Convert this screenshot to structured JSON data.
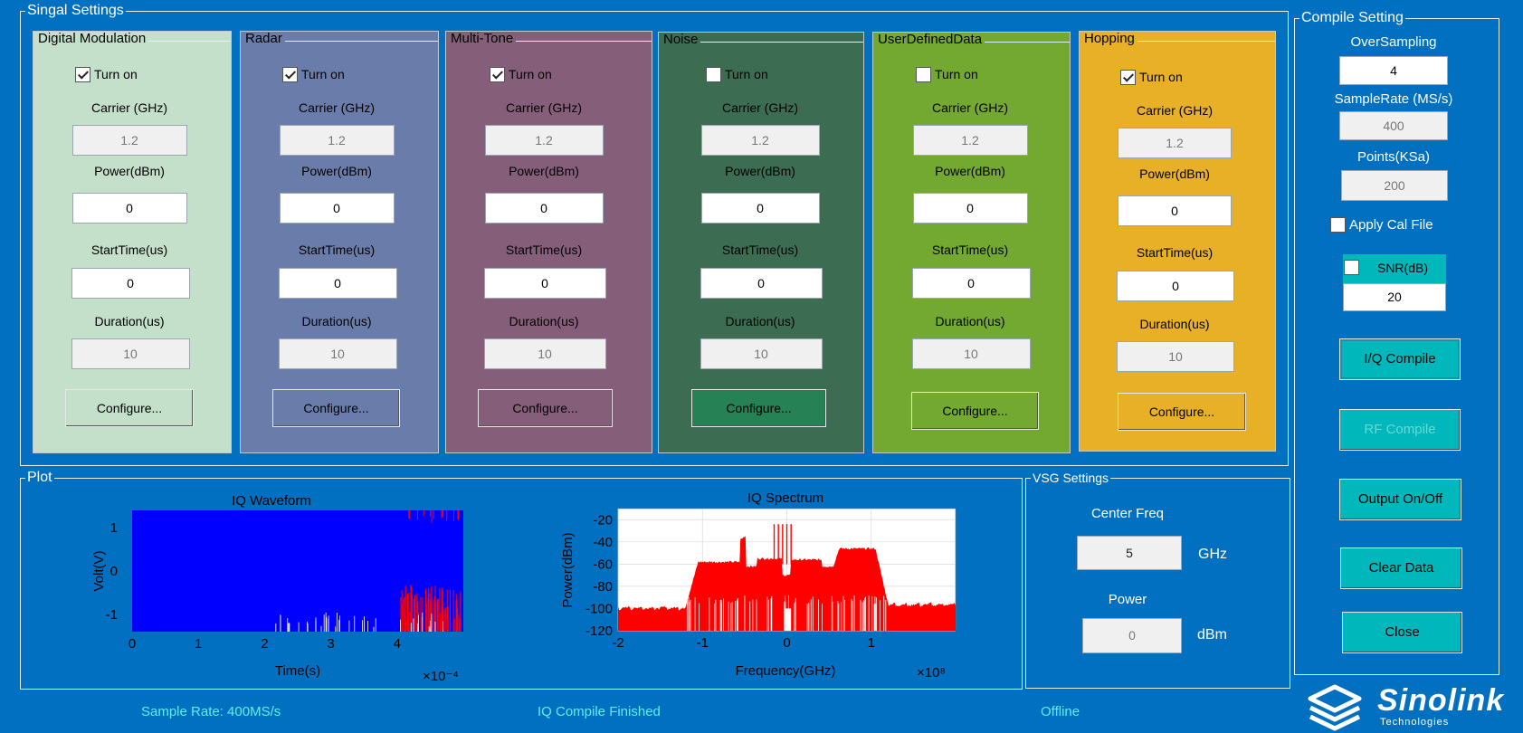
{
  "signal_settings": {
    "title": "Singal Settings",
    "panels": [
      {
        "name": "Digital Modulation",
        "bg": "#c4e0cb",
        "turn_on": true,
        "carrier": "1.2",
        "power": "0",
        "start_time": "0",
        "duration": "10",
        "btn_bg": "#c4e0cb"
      },
      {
        "name": "Radar",
        "bg": "#6a7daa",
        "turn_on": true,
        "carrier": "1.2",
        "power": "0",
        "start_time": "0",
        "duration": "10",
        "btn_bg": "#6a7daa"
      },
      {
        "name": "Multi-Tone",
        "bg": "#855e7a",
        "turn_on": true,
        "carrier": "1.2",
        "power": "0",
        "start_time": "0",
        "duration": "10",
        "btn_bg": "#855e7a"
      },
      {
        "name": "Noise",
        "bg": "#3c6d53",
        "turn_on": false,
        "carrier": "1.2",
        "power": "0",
        "start_time": "0",
        "duration": "10",
        "btn_bg": "#268155"
      },
      {
        "name": "UserDefinedData",
        "bg": "#73a831",
        "turn_on": false,
        "carrier": "1.2",
        "power": "0",
        "start_time": "0",
        "duration": "10",
        "btn_bg": "#73a831"
      },
      {
        "name": "Hopping",
        "bg": "#e8b027",
        "turn_on": true,
        "carrier": "1.2",
        "power": "0",
        "start_time": "0",
        "duration": "10",
        "btn_bg": "#e8b027"
      }
    ],
    "labels": {
      "turn_on": "Turn on",
      "carrier": "Carrier (GHz)",
      "power": "Power(dBm)",
      "start_time": "StartTime(us)",
      "duration": "Duration(us)",
      "configure": "Configure..."
    }
  },
  "compile_settings": {
    "title": "Compile Setting",
    "oversampling_label": "OverSampling",
    "oversampling": "4",
    "samplerate_label": "SampleRate (MS/s)",
    "samplerate": "400",
    "points_label": "Points(KSa)",
    "points": "200",
    "apply_cal_label": "Apply Cal File",
    "apply_cal": false,
    "snr_label": "SNR(dB)",
    "snr": "20",
    "snr_checked": false,
    "buttons": {
      "iq_compile": "I/Q Compile",
      "rf_compile": "RF Compile",
      "output": "Output On/Off",
      "clear": "Clear Data",
      "close": "Close"
    }
  },
  "plot": {
    "title": "Plot"
  },
  "vsg": {
    "title": "VSG Settings",
    "center_freq_label": "Center Freq",
    "center_freq": "5",
    "center_freq_unit": "GHz",
    "power_label": "Power",
    "power": "0",
    "power_unit": "dBm"
  },
  "status": {
    "sample_rate": "Sample Rate: 400MS/s",
    "compile": "IQ Compile Finished",
    "connection": "Offline"
  },
  "logo": {
    "name": "Sinolink",
    "sub": "Technologies"
  },
  "chart_data": [
    {
      "type": "line",
      "title": "IQ Waveform",
      "xlabel": "Time(s)",
      "ylabel": "Volt(V)",
      "xlim": [
        0,
        0.0005
      ],
      "ylim": [
        -1.4,
        1.4
      ],
      "xticks": [
        "0",
        "1",
        "2",
        "3",
        "4"
      ],
      "yticks": [
        "1",
        "0",
        "-1"
      ],
      "x_exponent": "×10⁻⁴",
      "series": [
        {
          "color": "#0000ff"
        },
        {
          "color": "#ff0000"
        },
        {
          "color": "#ffffff"
        }
      ]
    },
    {
      "type": "area",
      "title": "IQ Spectrum",
      "xlabel": "Frequency(GHz)",
      "ylabel": "Power(dBm)",
      "xlim": [
        -2,
        2
      ],
      "ylim": [
        -120,
        -10
      ],
      "xticks": [
        "-2",
        "-1",
        "0",
        "1"
      ],
      "yticks": [
        "-20",
        "-40",
        "-60",
        "-80",
        "-100",
        "-120"
      ],
      "x_exponent": "×10⁸",
      "series": [
        {
          "color": "#ff0000"
        }
      ]
    }
  ]
}
